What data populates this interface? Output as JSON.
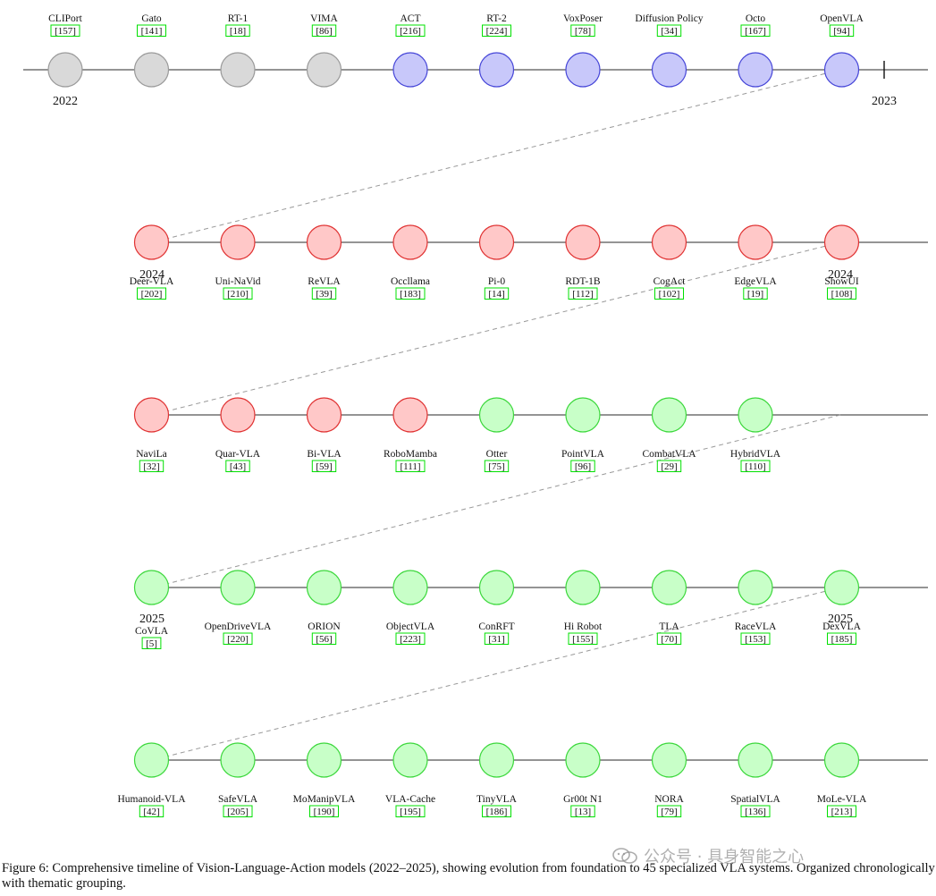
{
  "colors": {
    "gray_fill": "#d9d9d9",
    "gray_stroke": "#9a9a9a",
    "blue_fill": "#c8c8fa",
    "blue_stroke": "#4646d8",
    "red_fill": "#ffc8c8",
    "red_stroke": "#e03232",
    "green_fill": "#c8ffc8",
    "green_stroke": "#3cd83c",
    "cite_box": "#00e000",
    "line": "#555555",
    "connector": "#999999"
  },
  "rows": [
    {
      "year_labels": [
        "2022",
        "2023"
      ],
      "models": [
        {
          "name": "CLIPort",
          "ref": "157",
          "group": "gray"
        },
        {
          "name": "Gato",
          "ref": "141",
          "group": "gray"
        },
        {
          "name": "RT-1",
          "ref": "18",
          "group": "gray"
        },
        {
          "name": "VIMA",
          "ref": "86",
          "group": "gray"
        },
        {
          "name": "ACT",
          "ref": "216",
          "group": "blue"
        },
        {
          "name": "RT-2",
          "ref": "224",
          "group": "blue"
        },
        {
          "name": "VoxPoser",
          "ref": "78",
          "group": "blue"
        },
        {
          "name": "Diffusion Policy",
          "ref": "34",
          "group": "blue"
        },
        {
          "name": "Octo",
          "ref": "167",
          "group": "blue"
        },
        {
          "name": "OpenVLA",
          "ref": "94",
          "group": "blue"
        }
      ]
    },
    {
      "year_labels": [
        "2024",
        "2024"
      ],
      "models": [
        {
          "name": "Deer-VLA",
          "ref": "202",
          "group": "red"
        },
        {
          "name": "Uni-NaVid",
          "ref": "210",
          "group": "red"
        },
        {
          "name": "ReVLA",
          "ref": "39",
          "group": "red"
        },
        {
          "name": "Occllama",
          "ref": "183",
          "group": "red"
        },
        {
          "name": "Pi-0",
          "ref": "14",
          "group": "red"
        },
        {
          "name": "RDT-1B",
          "ref": "112",
          "group": "red"
        },
        {
          "name": "CogAct",
          "ref": "102",
          "group": "red"
        },
        {
          "name": "EdgeVLA",
          "ref": "19",
          "group": "red"
        },
        {
          "name": "ShowUI",
          "ref": "108",
          "group": "red"
        }
      ]
    },
    {
      "year_labels": [],
      "models": [
        {
          "name": "NaviLa",
          "ref": "32",
          "group": "red"
        },
        {
          "name": "Quar-VLA",
          "ref": "43",
          "group": "red"
        },
        {
          "name": "Bi-VLA",
          "ref": "59",
          "group": "red"
        },
        {
          "name": "RoboMamba",
          "ref": "111",
          "group": "red"
        },
        {
          "name": "Otter",
          "ref": "75",
          "group": "green"
        },
        {
          "name": "PointVLA",
          "ref": "96",
          "group": "green"
        },
        {
          "name": "CombatVLA",
          "ref": "29",
          "group": "green"
        },
        {
          "name": "HybridVLA",
          "ref": "110",
          "group": "green"
        }
      ]
    },
    {
      "year_labels": [
        "2025",
        "2025"
      ],
      "models": [
        {
          "name": "CoVLA",
          "ref": "5",
          "group": "green"
        },
        {
          "name": "OpenDriveVLA",
          "ref": "220",
          "group": "green"
        },
        {
          "name": "ORION",
          "ref": "56",
          "group": "green"
        },
        {
          "name": "ObjectVLA",
          "ref": "223",
          "group": "green"
        },
        {
          "name": "ConRFT",
          "ref": "31",
          "group": "green"
        },
        {
          "name": "Hi Robot",
          "ref": "155",
          "group": "green"
        },
        {
          "name": "TLA",
          "ref": "70",
          "group": "green"
        },
        {
          "name": "RaceVLA",
          "ref": "153",
          "group": "green"
        },
        {
          "name": "DexVLA",
          "ref": "185",
          "group": "green"
        }
      ]
    },
    {
      "year_labels": [],
      "models": [
        {
          "name": "Humanoid-VLA",
          "ref": "42",
          "group": "green"
        },
        {
          "name": "SafeVLA",
          "ref": "205",
          "group": "green"
        },
        {
          "name": "MoManipVLA",
          "ref": "190",
          "group": "green"
        },
        {
          "name": "VLA-Cache",
          "ref": "195",
          "group": "green"
        },
        {
          "name": "TinyVLA",
          "ref": "186",
          "group": "green"
        },
        {
          "name": "Gr00t N1",
          "ref": "13",
          "group": "green"
        },
        {
          "name": "NORA",
          "ref": "79",
          "group": "green"
        },
        {
          "name": "SpatialVLA",
          "ref": "136",
          "group": "green"
        },
        {
          "name": "MoLe-VLA",
          "ref": "213",
          "group": "green"
        }
      ]
    }
  ],
  "caption": "Figure 6: Comprehensive timeline of Vision-Language-Action models (2022–2025), showing evolution from foundation to 45 specialized VLA systems. Organized chronologically with thematic grouping.",
  "watermark": "公众号 · 具身智能之心"
}
